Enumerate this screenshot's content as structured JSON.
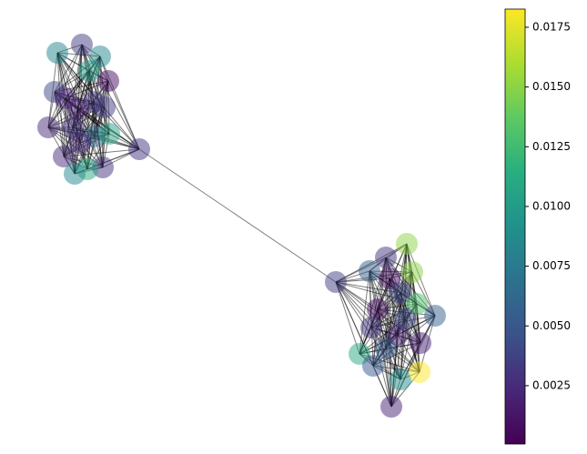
{
  "chart_data": {
    "type": "network",
    "values": [
      0.0085,
      0.0035,
      0.0085,
      0.01,
      0.001,
      0.004,
      0.002,
      0.003,
      0.0035,
      0.0025,
      0.003,
      0.006,
      0.0105,
      0.0025,
      0.0025,
      0.003,
      0.011,
      0.0085,
      0.003,
      0.002,
      0.015,
      0.003,
      0.0055,
      0.015,
      0.0035,
      0.001,
      0.004,
      0.001,
      0.013,
      0.0055,
      0.003,
      0.002,
      0.002,
      0.011,
      0.005,
      0.005,
      0.009,
      0.0183,
      0.002,
      0.004
    ],
    "clim": [
      6e-05,
      0.01826
    ],
    "cticks": [
      0.0025,
      {
        "value": 0.005,
        "label": "0.0050"
      },
      0.0075,
      {
        "value": 0.01,
        "label": "0.0100"
      },
      0.0125,
      {
        "value": 0.015,
        "label": "0.0150"
      },
      0.0175
    ],
    "colormap": "viridis"
  }
}
